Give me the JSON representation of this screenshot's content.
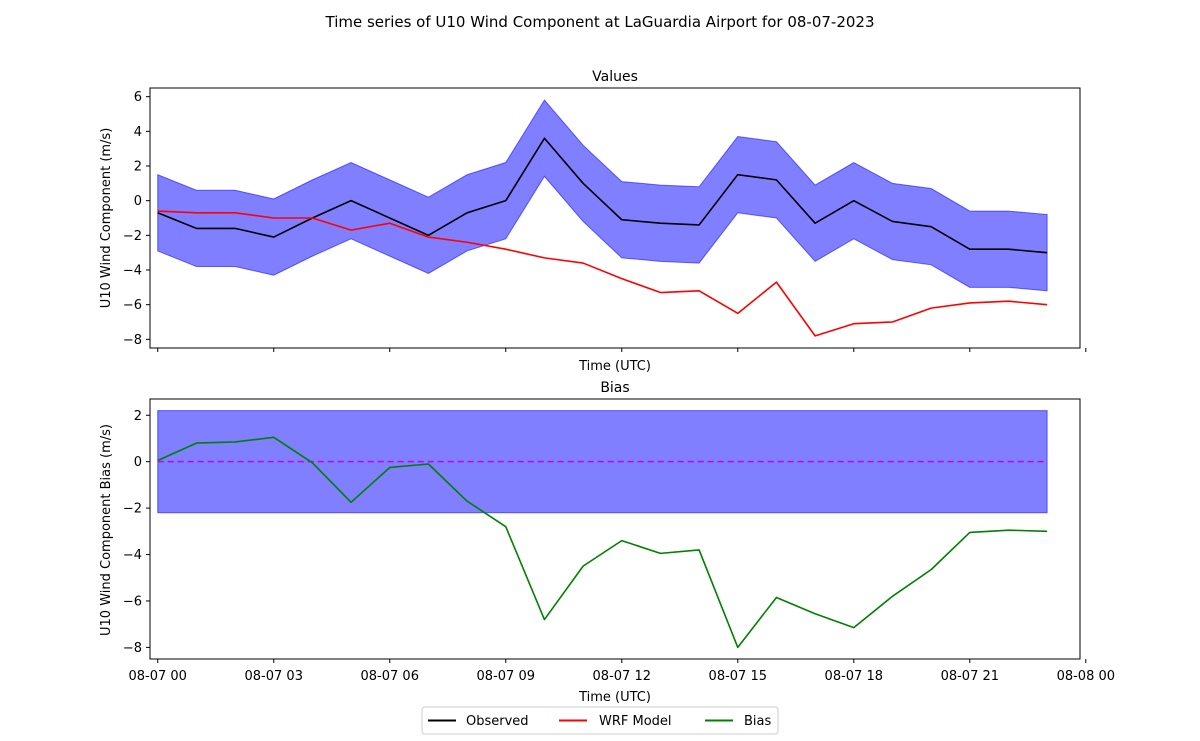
{
  "figure": {
    "title": "Time series of U10 Wind Component at LaGuardia Airport for 08-07-2023"
  },
  "colors": {
    "observed": "#000000",
    "model": "#ff0000",
    "bias": "#008000",
    "band": "#0000ff",
    "zero_line": "#c000ff"
  },
  "chart_data": [
    {
      "type": "line",
      "title": "Values",
      "xlabel": "Time (UTC)",
      "ylabel": "U10 Wind Component (m/s)",
      "x": [
        "08-07 00",
        "08-07 01",
        "08-07 02",
        "08-07 03",
        "08-07 04",
        "08-07 05",
        "08-07 06",
        "08-07 07",
        "08-07 08",
        "08-07 09",
        "08-07 10",
        "08-07 11",
        "08-07 12",
        "08-07 13",
        "08-07 14",
        "08-07 15",
        "08-07 16",
        "08-07 17",
        "08-07 18",
        "08-07 19",
        "08-07 20",
        "08-07 21",
        "08-07 22",
        "08-07 23"
      ],
      "xlim": [
        -0.2,
        23.85
      ],
      "ylim": [
        -8.5,
        6.5
      ],
      "yticks": [
        6,
        4,
        2,
        0,
        -2,
        -4,
        -6,
        -8
      ],
      "series": [
        {
          "name": "Observed",
          "color_key": "observed",
          "values": [
            -0.7,
            -1.6,
            -1.6,
            -2.1,
            -1.0,
            0.0,
            -1.0,
            -2.0,
            -0.7,
            0.0,
            3.6,
            1.0,
            -1.1,
            -1.3,
            -1.4,
            1.5,
            1.2,
            -1.3,
            0.0,
            -1.2,
            -1.5,
            -2.8,
            -2.8,
            -3.0
          ]
        },
        {
          "name": "WRF Model",
          "color_key": "model",
          "values": [
            -0.6,
            -0.7,
            -0.7,
            -1.0,
            -1.0,
            -1.7,
            -1.3,
            -2.1,
            -2.4,
            -2.8,
            -3.3,
            -3.6,
            -4.5,
            -5.3,
            -5.2,
            -6.5,
            -4.7,
            -7.8,
            -7.1,
            -7.0,
            -6.2,
            -5.9,
            -5.8,
            -6.0
          ]
        }
      ],
      "band": {
        "around": "Observed",
        "width": 2.2,
        "opacity": 0.5
      }
    },
    {
      "type": "line",
      "title": "Bias",
      "xlabel": "Time (UTC)",
      "ylabel": "U10 Wind Component Bias (m/s)",
      "x": [
        "08-07 00",
        "08-07 01",
        "08-07 02",
        "08-07 03",
        "08-07 04",
        "08-07 05",
        "08-07 06",
        "08-07 07",
        "08-07 08",
        "08-07 09",
        "08-07 10",
        "08-07 11",
        "08-07 12",
        "08-07 13",
        "08-07 14",
        "08-07 15",
        "08-07 16",
        "08-07 17",
        "08-07 18",
        "08-07 19",
        "08-07 20",
        "08-07 21",
        "08-07 22",
        "08-07 23"
      ],
      "xlim": [
        -0.2,
        23.85
      ],
      "ylim": [
        -8.5,
        2.7
      ],
      "yticks": [
        2,
        0,
        -2,
        -4,
        -6,
        -8
      ],
      "xtick_positions": [
        0,
        3,
        6,
        9,
        12,
        15,
        18,
        21,
        24
      ],
      "xtick_labels": [
        "08-07 00",
        "08-07 03",
        "08-07 06",
        "08-07 09",
        "08-07 12",
        "08-07 15",
        "08-07 18",
        "08-07 21",
        "08-08 00"
      ],
      "series": [
        {
          "name": "Bias",
          "color_key": "bias",
          "values": [
            0.05,
            0.8,
            0.85,
            1.05,
            -0.05,
            -1.75,
            -0.25,
            -0.1,
            -1.7,
            -2.8,
            -6.8,
            -4.5,
            -3.4,
            -3.95,
            -3.8,
            -8.0,
            -5.85,
            -6.55,
            -7.15,
            -5.8,
            -4.65,
            -3.05,
            -2.95,
            -3.0
          ]
        }
      ],
      "band": {
        "lower": -2.2,
        "upper": 2.2,
        "opacity": 0.5
      },
      "reference_line": {
        "y": 0,
        "style": "dashed",
        "color_key": "zero_line"
      }
    }
  ],
  "legend": {
    "placement": "bottom-center",
    "entries": [
      {
        "label": "Observed",
        "color_key": "observed"
      },
      {
        "label": "WRF Model",
        "color_key": "model"
      },
      {
        "label": "Bias",
        "color_key": "bias"
      }
    ]
  }
}
